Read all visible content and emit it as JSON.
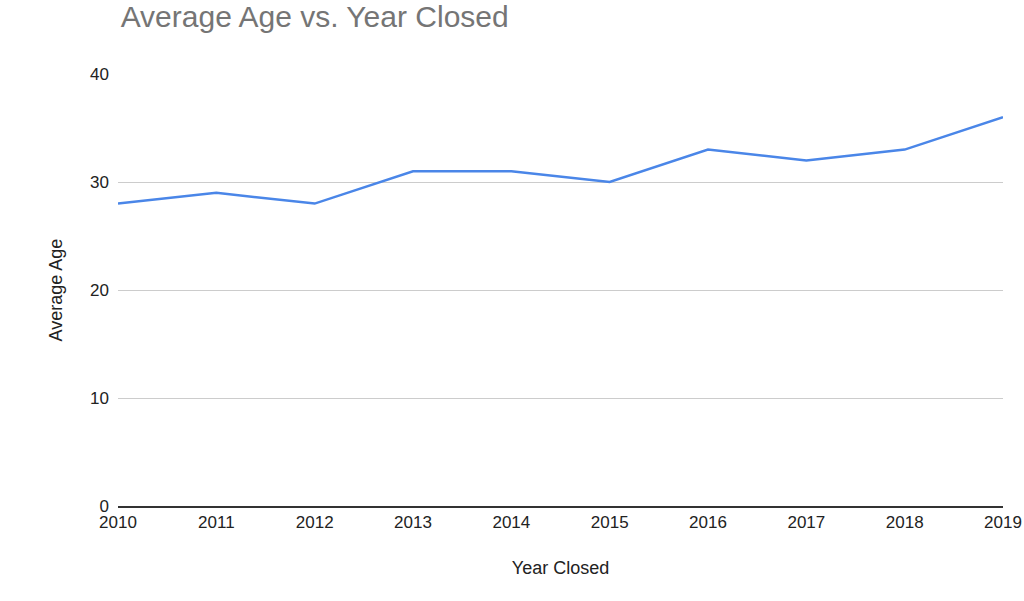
{
  "chart_data": {
    "type": "line",
    "title": "Average Age vs. Year Closed",
    "x_label": "Year Closed",
    "y_label": "Average Age",
    "categories": [
      "2010",
      "2011",
      "2012",
      "2013",
      "2014",
      "2015",
      "2016",
      "2017",
      "2018",
      "2019"
    ],
    "values": [
      28,
      29,
      28,
      31,
      31,
      30,
      33,
      32,
      33,
      36
    ],
    "color": "#4a86e8",
    "ylim": [
      0,
      40
    ],
    "yticks": [
      0,
      10,
      20,
      30,
      40
    ],
    "grid": true
  }
}
